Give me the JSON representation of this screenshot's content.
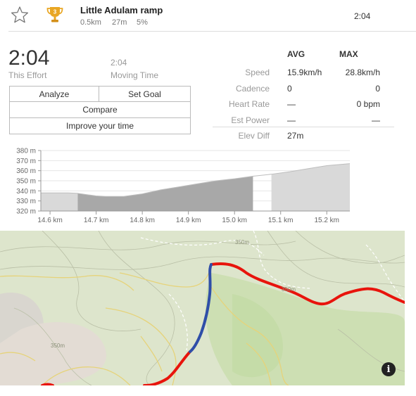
{
  "segment": {
    "title": "Little Adulam ramp",
    "distance": "0.5km",
    "elevation": "27m",
    "grade": "5%",
    "time": "2:04",
    "rank_badge": "3"
  },
  "effort": {
    "time": "2:04",
    "time_label": "This Effort",
    "moving_time": "2:04",
    "moving_label": "Moving Time"
  },
  "buttons": {
    "analyze": "Analyze",
    "set_goal": "Set Goal",
    "compare": "Compare",
    "improve": "Improve your time"
  },
  "stats": {
    "avg_header": "AVG",
    "max_header": "MAX",
    "rows": [
      {
        "label": "Speed",
        "avg": "15.9km/h",
        "max": "28.8km/h"
      },
      {
        "label": "Cadence",
        "avg": "0",
        "max": "0"
      },
      {
        "label": "Heart Rate",
        "avg": "—",
        "max": "0 bpm"
      },
      {
        "label": "Est Power",
        "avg": "—",
        "max": "—"
      },
      {
        "label": "Elev Diff",
        "avg": "27m",
        "max": ""
      }
    ]
  },
  "chart_data": {
    "type": "area",
    "title": "",
    "xlabel": "",
    "ylabel": "",
    "xlim": [
      14.58,
      15.25
    ],
    "ylim": [
      320,
      380
    ],
    "x_ticks": [
      "14.6 km",
      "14.7 km",
      "14.8 km",
      "14.9 km",
      "15.0 km",
      "15.1 km",
      "15.2 km"
    ],
    "x_tick_values": [
      14.6,
      14.7,
      14.8,
      14.9,
      15.0,
      15.1,
      15.2
    ],
    "y_ticks": [
      "380 m",
      "370 m",
      "360 m",
      "350 m",
      "340 m",
      "330 m",
      "320 m"
    ],
    "y_tick_values": [
      380,
      370,
      360,
      350,
      340,
      330,
      320
    ],
    "segment_range": [
      14.66,
      15.06
    ],
    "x": [
      14.58,
      14.6,
      14.62,
      14.64,
      14.66,
      14.7,
      14.72,
      14.74,
      14.76,
      14.8,
      14.84,
      14.88,
      14.92,
      14.96,
      15.0,
      15.04,
      15.08,
      15.12,
      15.16,
      15.2,
      15.25
    ],
    "y": [
      338,
      338,
      338,
      338,
      337.5,
      335,
      334.5,
      334.5,
      334.5,
      337,
      341,
      344,
      347,
      350,
      352,
      354.5,
      356.5,
      359,
      362,
      365,
      367
    ],
    "colors": {
      "segment": "#a8a8a8",
      "outside": "#d9d9d9",
      "line": "#bdbdbd"
    }
  },
  "map": {
    "contour_labels": [
      "350m",
      "350m",
      "350m"
    ],
    "route_color": "#e8140c",
    "segment_color": "#2f4ea8"
  }
}
